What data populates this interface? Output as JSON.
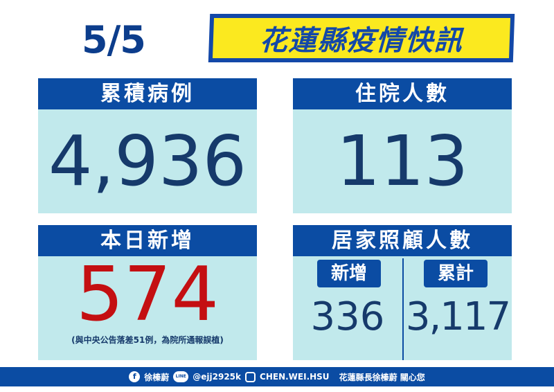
{
  "date": "5/5",
  "banner_title": "花蓮縣疫情快訊",
  "panels": {
    "cumulative": {
      "label": "累積病例",
      "value": "4,936"
    },
    "hospitalized": {
      "label": "住院人數",
      "value": "113"
    },
    "today_new": {
      "label": "本日新增",
      "value": "574",
      "note": "(與中央公告落差51例，為院所通報誤植)"
    },
    "home_care": {
      "label": "居家照顧人數",
      "new_label": "新增",
      "new_value": "336",
      "total_label": "累計",
      "total_value": "3,117"
    }
  },
  "footer": {
    "facebook": "徐榛蔚",
    "line": "@ejj2925k",
    "instagram": "CHEN.WEI.HSU",
    "message": "花蓮縣長徐榛蔚 關心您",
    "line_icon_text": "LINE"
  },
  "colors": {
    "header_blue": "#0b4ca3",
    "panel_bg": "#c1e9ec",
    "number_navy": "#163a6b",
    "alert_red": "#c40f12",
    "banner_yellow": "#fbe91f"
  }
}
